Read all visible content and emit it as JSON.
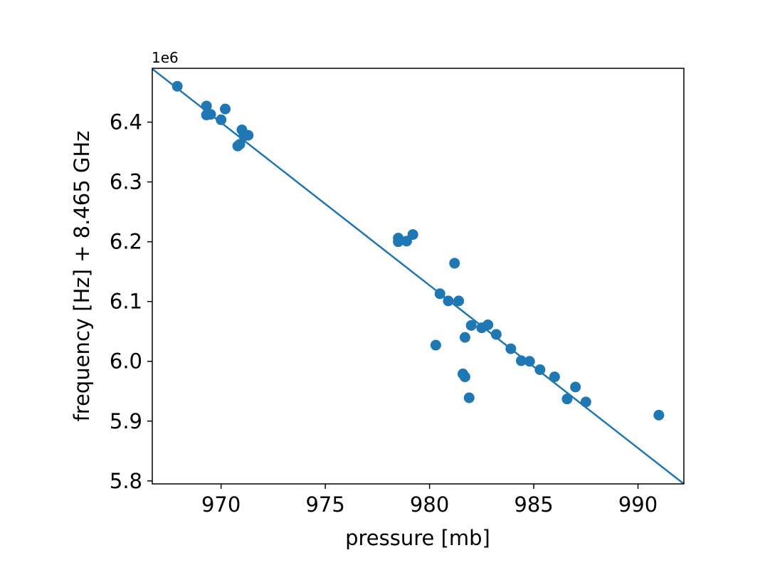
{
  "chart_data": {
    "type": "scatter",
    "title": "",
    "xlabel": "pressure [mb]",
    "ylabel": "frequency [Hz] + 8.465 GHz",
    "y_offset_label": "1e6",
    "xlim": [
      966.7,
      992.2
    ],
    "ylim": [
      5.795,
      6.49
    ],
    "xticks": [
      970,
      975,
      980,
      985,
      990
    ],
    "xtick_labels": [
      "970",
      "975",
      "980",
      "985",
      "990"
    ],
    "yticks": [
      5.8,
      5.9,
      6.0,
      6.1,
      6.2,
      6.3,
      6.4
    ],
    "ytick_labels": [
      "5.8",
      "5.9",
      "6.0",
      "6.1",
      "6.2",
      "6.3",
      "6.4"
    ],
    "grid": false,
    "color": "#1f77b4",
    "fit_line": {
      "x": [
        966.7,
        992.2
      ],
      "y": [
        6.489,
        5.795
      ]
    },
    "points": [
      {
        "x": 967.9,
        "y": 6.46
      },
      {
        "x": 969.3,
        "y": 6.427
      },
      {
        "x": 969.3,
        "y": 6.412
      },
      {
        "x": 969.5,
        "y": 6.413
      },
      {
        "x": 970.0,
        "y": 6.404
      },
      {
        "x": 970.2,
        "y": 6.422
      },
      {
        "x": 970.8,
        "y": 6.36
      },
      {
        "x": 970.9,
        "y": 6.363
      },
      {
        "x": 971.0,
        "y": 6.387
      },
      {
        "x": 971.1,
        "y": 6.377
      },
      {
        "x": 971.3,
        "y": 6.378
      },
      {
        "x": 978.5,
        "y": 6.206
      },
      {
        "x": 978.5,
        "y": 6.2
      },
      {
        "x": 978.9,
        "y": 6.201
      },
      {
        "x": 979.2,
        "y": 6.212
      },
      {
        "x": 980.3,
        "y": 6.027
      },
      {
        "x": 980.5,
        "y": 6.113
      },
      {
        "x": 980.9,
        "y": 6.101
      },
      {
        "x": 981.2,
        "y": 6.164
      },
      {
        "x": 981.4,
        "y": 6.101
      },
      {
        "x": 981.6,
        "y": 5.979
      },
      {
        "x": 981.7,
        "y": 5.974
      },
      {
        "x": 981.7,
        "y": 6.04
      },
      {
        "x": 981.9,
        "y": 5.939
      },
      {
        "x": 982.0,
        "y": 6.06
      },
      {
        "x": 982.5,
        "y": 6.056
      },
      {
        "x": 982.8,
        "y": 6.061
      },
      {
        "x": 983.2,
        "y": 6.045
      },
      {
        "x": 983.9,
        "y": 6.021
      },
      {
        "x": 984.4,
        "y": 6.001
      },
      {
        "x": 984.8,
        "y": 6.0
      },
      {
        "x": 985.3,
        "y": 5.986
      },
      {
        "x": 986.0,
        "y": 5.974
      },
      {
        "x": 986.6,
        "y": 5.937
      },
      {
        "x": 987.0,
        "y": 5.957
      },
      {
        "x": 987.5,
        "y": 5.932
      },
      {
        "x": 991.0,
        "y": 5.91
      }
    ]
  }
}
